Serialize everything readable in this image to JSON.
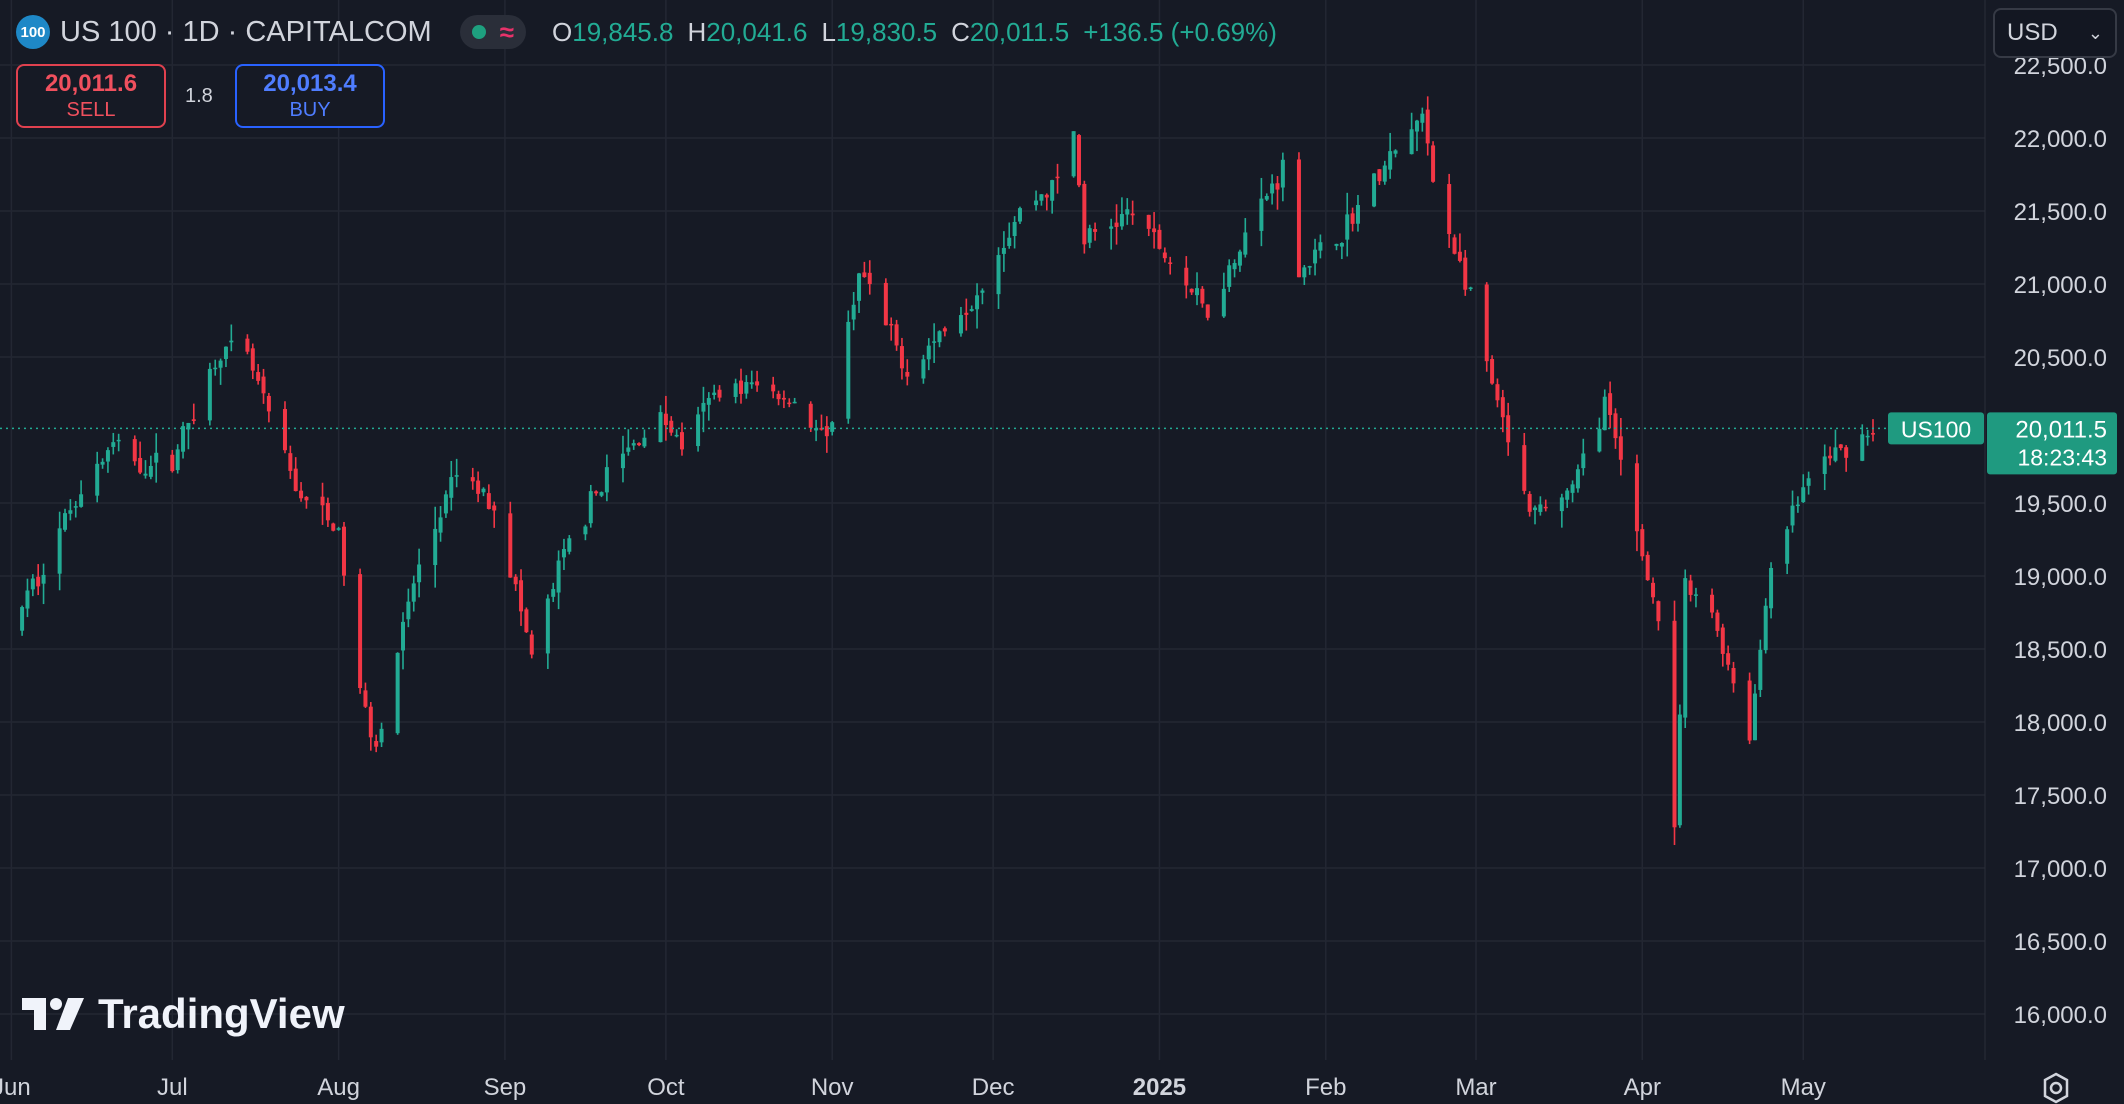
{
  "header": {
    "symbol_badge": "100",
    "title": "US 100 · 1D · CAPITALCOM",
    "open_label": "O",
    "open": "19,845.8",
    "high_label": "H",
    "high": "20,041.6",
    "low_label": "L",
    "low": "19,830.5",
    "close_label": "C",
    "close": "20,011.5",
    "change": "+136.5 (+0.69%)",
    "status_icons": [
      "market-open-dot-icon",
      "wave-icon"
    ]
  },
  "trade": {
    "sell_price": "20,011.6",
    "sell_label": "SELL",
    "spread": "1.8",
    "buy_price": "20,013.4",
    "buy_label": "BUY"
  },
  "currency": {
    "value": "USD",
    "icon": "chevron-down-icon"
  },
  "branding": {
    "logo_text": "TradingView"
  },
  "colors": {
    "up": "#22ab94",
    "down": "#f23645",
    "background": "#161a25",
    "grid": "#232733",
    "text": "#d1d4dc"
  },
  "chart_data": {
    "type": "candlestick",
    "x_start": "2024-05-31",
    "x_end": "2025-05-14",
    "xticks": [
      {
        "date": "2024-06-01",
        "label": "Jun"
      },
      {
        "date": "2024-07-01",
        "label": "Jul"
      },
      {
        "date": "2024-08-01",
        "label": "Aug"
      },
      {
        "date": "2024-09-01",
        "label": "Sep"
      },
      {
        "date": "2024-10-01",
        "label": "Oct"
      },
      {
        "date": "2024-11-01",
        "label": "Nov"
      },
      {
        "date": "2024-12-01",
        "label": "Dec"
      },
      {
        "date": "2025-01-01",
        "label": "2025",
        "bold": true
      },
      {
        "date": "2025-02-01",
        "label": "Feb"
      },
      {
        "date": "2025-03-01",
        "label": "Mar"
      },
      {
        "date": "2025-04-01",
        "label": "Apr"
      },
      {
        "date": "2025-05-01",
        "label": "May"
      }
    ],
    "ylim": [
      15850,
      22650
    ],
    "yticks": [
      16000,
      16500,
      17000,
      17500,
      18000,
      18500,
      19000,
      19500,
      20500,
      21000,
      21500,
      22000,
      22500
    ],
    "ytick_labels": [
      "16,000.0",
      "16,500.0",
      "17,000.0",
      "17,500.0",
      "18,000.0",
      "18,500.0",
      "19,000.0",
      "19,500.0",
      "20,500.0",
      "21,000.0",
      "21,500.0",
      "22,000.0",
      "22,500.0"
    ],
    "grid": true,
    "last_price": {
      "value": 20011.5,
      "label": "20,011.5",
      "countdown": "18:23:43",
      "symbol": "US100"
    },
    "anchors": [
      [
        "2024-05-31",
        18600
      ],
      [
        "2024-06-06",
        19000
      ],
      [
        "2024-06-13",
        19550
      ],
      [
        "2024-06-20",
        19900
      ],
      [
        "2024-06-26",
        19750
      ],
      [
        "2024-07-01",
        19800
      ],
      [
        "2024-07-10",
        20550
      ],
      [
        "2024-07-15",
        20500
      ],
      [
        "2024-07-24",
        19600
      ],
      [
        "2024-08-01",
        19300
      ],
      [
        "2024-08-05",
        18200
      ],
      [
        "2024-08-08",
        17850
      ],
      [
        "2024-08-15",
        18950
      ],
      [
        "2024-08-23",
        19700
      ],
      [
        "2024-08-30",
        19500
      ],
      [
        "2024-09-06",
        18450
      ],
      [
        "2024-09-12",
        19150
      ],
      [
        "2024-09-20",
        19700
      ],
      [
        "2024-09-30",
        20100
      ],
      [
        "2024-10-04",
        19900
      ],
      [
        "2024-10-11",
        20300
      ],
      [
        "2024-10-18",
        20300
      ],
      [
        "2024-10-25",
        20200
      ],
      [
        "2024-10-31",
        19900
      ],
      [
        "2024-11-06",
        21100
      ],
      [
        "2024-11-15",
        20400
      ],
      [
        "2024-11-22",
        20700
      ],
      [
        "2024-11-27",
        20900
      ],
      [
        "2024-12-06",
        21500
      ],
      [
        "2024-12-13",
        21700
      ],
      [
        "2024-12-16",
        22050
      ],
      [
        "2024-12-18",
        21300
      ],
      [
        "2024-12-27",
        21500
      ],
      [
        "2025-01-03",
        21150
      ],
      [
        "2025-01-10",
        20800
      ],
      [
        "2025-01-17",
        21350
      ],
      [
        "2025-01-24",
        21800
      ],
      [
        "2025-01-27",
        21100
      ],
      [
        "2025-02-03",
        21300
      ],
      [
        "2025-02-10",
        21700
      ],
      [
        "2025-02-19",
        22150
      ],
      [
        "2025-02-21",
        21700
      ],
      [
        "2025-02-28",
        20900
      ],
      [
        "2025-03-04",
        20300
      ],
      [
        "2025-03-11",
        19400
      ],
      [
        "2025-03-19",
        19600
      ],
      [
        "2025-03-25",
        20200
      ],
      [
        "2025-03-31",
        19300
      ],
      [
        "2025-04-04",
        18700
      ],
      [
        "2025-04-07",
        17200
      ],
      [
        "2025-04-09",
        18900
      ],
      [
        "2025-04-14",
        18750
      ],
      [
        "2025-04-17",
        18400
      ],
      [
        "2025-04-21",
        17900
      ],
      [
        "2025-04-25",
        19100
      ],
      [
        "2025-05-01",
        19600
      ],
      [
        "2025-05-05",
        19800
      ],
      [
        "2025-05-08",
        19850
      ],
      [
        "2025-05-14",
        20011.5
      ]
    ]
  }
}
